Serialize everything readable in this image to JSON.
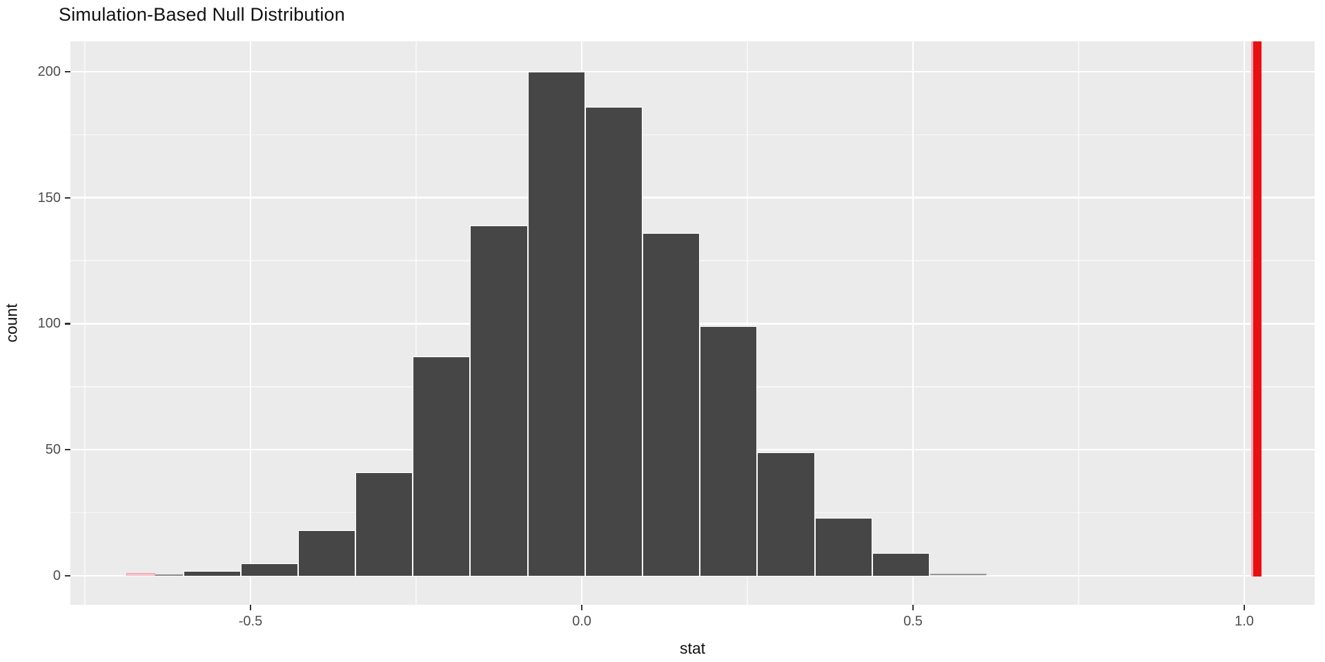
{
  "chart_data": {
    "type": "bar",
    "subtype": "histogram-simulation-null",
    "title": "Simulation-Based Null Distribution",
    "xlabel": "stat",
    "ylabel": "count",
    "x_ticks": [
      {
        "value": -0.5,
        "label": "-0.5"
      },
      {
        "value": 0.0,
        "label": "0.0"
      },
      {
        "value": 0.5,
        "label": "0.5"
      },
      {
        "value": 1.0,
        "label": "1.0"
      }
    ],
    "y_ticks": [
      {
        "value": 0,
        "label": "0"
      },
      {
        "value": 50,
        "label": "50"
      },
      {
        "value": 100,
        "label": "100"
      },
      {
        "value": 150,
        "label": "150"
      },
      {
        "value": 200,
        "label": "200"
      }
    ],
    "x_minor_gridlines": [
      -0.75,
      -0.25,
      0.25,
      0.75
    ],
    "y_minor_gridlines": [
      25,
      75,
      125,
      175
    ],
    "xlim": [
      -0.7719,
      1.1063
    ],
    "ylim": [
      0,
      212
    ],
    "grid": true,
    "legend": "none",
    "binwidth": 0.0867,
    "bins": [
      {
        "x0": -0.6875,
        "x1": -0.6438,
        "count": 1,
        "style": "shaded-pink"
      },
      {
        "x0": -0.6438,
        "x1": -0.602,
        "count": 0.4,
        "style": "thin-line"
      },
      {
        "x0": -0.601,
        "x1": -0.5146,
        "count": 2,
        "style": "normal"
      },
      {
        "x0": -0.5146,
        "x1": -0.4281,
        "count": 5,
        "style": "normal"
      },
      {
        "x0": -0.4281,
        "x1": -0.3417,
        "count": 18,
        "style": "normal"
      },
      {
        "x0": -0.3417,
        "x1": -0.2552,
        "count": 41,
        "style": "normal"
      },
      {
        "x0": -0.2552,
        "x1": -0.1688,
        "count": 87,
        "style": "normal"
      },
      {
        "x0": -0.1688,
        "x1": -0.0813,
        "count": 139,
        "style": "normal"
      },
      {
        "x0": -0.0813,
        "x1": 0.0052,
        "count": 200,
        "style": "normal"
      },
      {
        "x0": 0.0052,
        "x1": 0.0917,
        "count": 186,
        "style": "normal"
      },
      {
        "x0": 0.0917,
        "x1": 0.1781,
        "count": 136,
        "style": "normal"
      },
      {
        "x0": 0.1781,
        "x1": 0.2646,
        "count": 99,
        "style": "normal"
      },
      {
        "x0": 0.2646,
        "x1": 0.3521,
        "count": 49,
        "style": "normal"
      },
      {
        "x0": 0.3521,
        "x1": 0.4385,
        "count": 23,
        "style": "normal"
      },
      {
        "x0": 0.4385,
        "x1": 0.525,
        "count": 9,
        "style": "normal"
      },
      {
        "x0": 0.525,
        "x1": 0.6115,
        "count": 1,
        "style": "faint"
      }
    ],
    "observed_stat": 1.02,
    "colors": {
      "bar_fill": "#464646",
      "bar_outline": "#FFFFFF",
      "panel_background": "#EBEBEB",
      "grid_major": "#FFFFFF",
      "obs_line": "#E81010",
      "obs_line_edge": "#F2A8B4",
      "shaded_fill": "#F7C3CD",
      "shaded_outline": "#EF9DAB",
      "tick_label": "#4D4D4D"
    }
  }
}
